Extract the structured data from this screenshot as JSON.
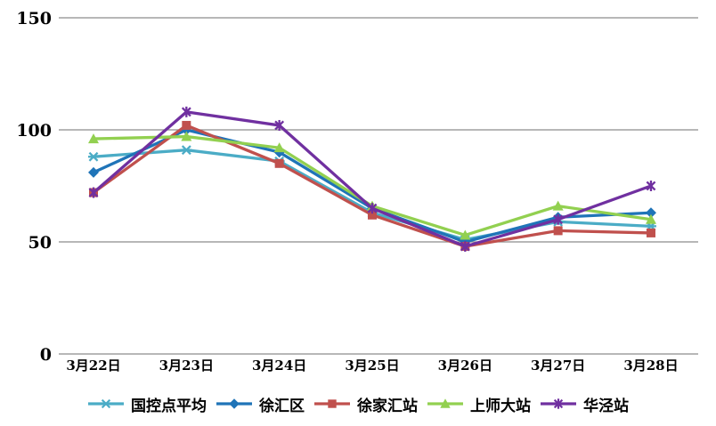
{
  "chart_data": {
    "type": "line",
    "title": "",
    "xlabel": "",
    "ylabel": "",
    "categories": [
      "3月22日",
      "3月23日",
      "3月24日",
      "3月25日",
      "3月26日",
      "3月27日",
      "3月28日"
    ],
    "series": [
      {
        "name": "国控点平均",
        "color": "#4BACC6",
        "marker": "asterisk-horizontal",
        "values": [
          88,
          91,
          86,
          63,
          51,
          59,
          57
        ]
      },
      {
        "name": "徐汇区",
        "color": "#1F74B8",
        "marker": "diamond",
        "values": [
          81,
          100,
          90,
          65,
          50,
          61,
          63
        ]
      },
      {
        "name": "徐家汇站",
        "color": "#C0504D",
        "marker": "square",
        "values": [
          72,
          102,
          85,
          62,
          48,
          55,
          54
        ]
      },
      {
        "name": "上师大站",
        "color": "#92D050",
        "marker": "triangle",
        "values": [
          96,
          97,
          92,
          66,
          53,
          66,
          60
        ]
      },
      {
        "name": "华泾站",
        "color": "#7030A0",
        "marker": "asterisk-vertical",
        "values": [
          72,
          108,
          102,
          65,
          48,
          60,
          75
        ]
      }
    ],
    "ylim": [
      0,
      150
    ],
    "yticks": [
      0,
      50,
      100,
      150
    ],
    "grid": true,
    "legend_position": "bottom",
    "background": "#FFFFFF",
    "gridline_color": "#8C8C8C",
    "axis_text_color": "#000000"
  }
}
